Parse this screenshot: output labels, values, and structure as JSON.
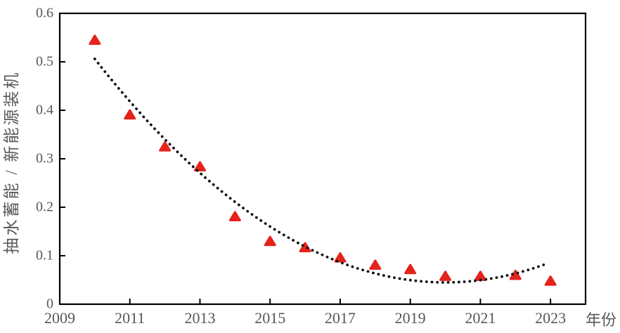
{
  "figure": {
    "background": "#ffffff"
  },
  "chart_data": {
    "type": "scatter",
    "title": "",
    "xlabel": "年份",
    "ylabel": "抽水蓄能 / 新能源装机",
    "x": [
      2010,
      2011,
      2012,
      2013,
      2014,
      2015,
      2016,
      2017,
      2018,
      2019,
      2020,
      2021,
      2022,
      2023
    ],
    "values": [
      0.545,
      0.391,
      0.325,
      0.284,
      0.181,
      0.13,
      0.117,
      0.096,
      0.081,
      0.072,
      0.058,
      0.058,
      0.06,
      0.048
    ],
    "xlim": [
      2009,
      2024
    ],
    "ylim": [
      0,
      0.6
    ],
    "x_ticks": [
      2009,
      2011,
      2013,
      2015,
      2017,
      2019,
      2021,
      2023
    ],
    "x_tick_labels": [
      "2009",
      "2011",
      "2013",
      "2015",
      "2017",
      "2019",
      "2021",
      "2023"
    ],
    "y_ticks": [
      0,
      0.1,
      0.2,
      0.3,
      0.4,
      0.5,
      0.6
    ],
    "y_tick_labels": [
      "0",
      "0.1",
      "0.2",
      "0.3",
      "0.4",
      "0.5",
      "0.6"
    ],
    "grid": false,
    "legend_position": "none",
    "marker": {
      "shape": "triangle-up",
      "color": "#e5231d"
    },
    "trendline": {
      "style": "dotted",
      "color": "#111111",
      "model": "quadratic",
      "coeff_a": 0.00461,
      "vertex_year": 2020,
      "min_value": 0.045,
      "year_start": 2010,
      "year_end": 2022.9
    },
    "axis_color": "#000000",
    "tick_label_color": "#575757"
  }
}
